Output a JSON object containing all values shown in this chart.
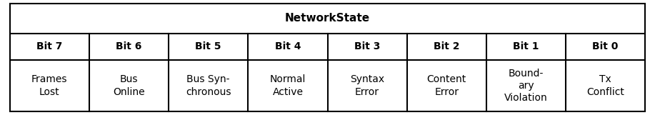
{
  "title": "NetworkState",
  "bit_labels": [
    "Bit 7",
    "Bit 6",
    "Bit 5",
    "Bit 4",
    "Bit 3",
    "Bit 2",
    "Bit 1",
    "Bit 0"
  ],
  "content": [
    "Frames\nLost",
    "Bus\nOnline",
    "Bus Syn-\nchronous",
    "Normal\nActive",
    "Syntax\nError",
    "Content\nError",
    "Bound-\nary\nViolation",
    "Tx\nConflict"
  ],
  "content_colors": [
    "#000000",
    "#000000",
    "#000000",
    "#000000",
    "#000000",
    "#000000",
    "#000000",
    "#000000"
  ],
  "border_color": "#000000",
  "background_color": "#ffffff",
  "title_fontsize": 11,
  "bit_fontsize": 10,
  "content_fontsize": 10,
  "fig_width": 9.17,
  "fig_height": 1.61,
  "dpi": 100
}
